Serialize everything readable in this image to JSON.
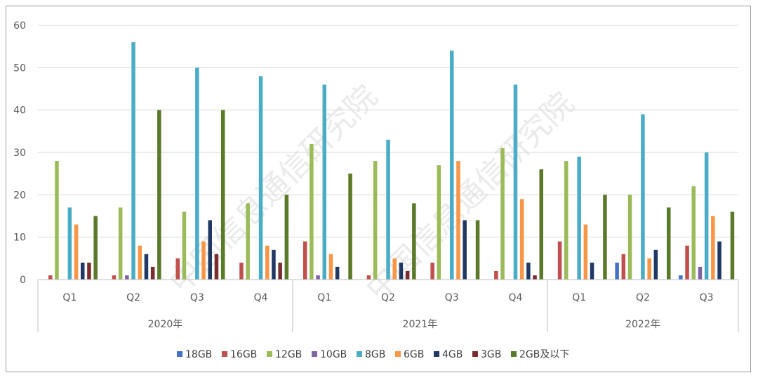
{
  "chart_data": {
    "type": "bar",
    "yticks": [
      0,
      10,
      20,
      30,
      40,
      50,
      60
    ],
    "ylim": [
      0,
      60
    ],
    "grid": true,
    "legend_position": "bottom",
    "groups": [
      {
        "label": "2020年",
        "quarters": [
          "Q1",
          "Q2",
          "Q3",
          "Q4"
        ]
      },
      {
        "label": "2021年",
        "quarters": [
          "Q1",
          "Q2",
          "Q3",
          "Q4"
        ]
      },
      {
        "label": "2022年",
        "quarters": [
          "Q1",
          "Q2",
          "Q3"
        ]
      }
    ],
    "categories": [
      "Q1",
      "Q2",
      "Q3",
      "Q4",
      "Q1",
      "Q2",
      "Q3",
      "Q4",
      "Q1",
      "Q2",
      "Q3"
    ],
    "series": [
      {
        "name": "18GB",
        "color": "#4472c4",
        "values": [
          0,
          0,
          0,
          0,
          0,
          0,
          0,
          0,
          0,
          4,
          1
        ]
      },
      {
        "name": "16GB",
        "color": "#c0504d",
        "values": [
          1,
          1,
          5,
          4,
          9,
          1,
          4,
          2,
          9,
          6,
          8
        ]
      },
      {
        "name": "12GB",
        "color": "#9bbb59",
        "values": [
          28,
          17,
          16,
          18,
          32,
          28,
          27,
          31,
          28,
          20,
          22
        ]
      },
      {
        "name": "10GB",
        "color": "#8064a2",
        "values": [
          0,
          1,
          0,
          0,
          1,
          0,
          0,
          0,
          0,
          0,
          3
        ]
      },
      {
        "name": "8GB",
        "color": "#4bacc6",
        "values": [
          17,
          56,
          50,
          48,
          46,
          33,
          54,
          46,
          29,
          39,
          30
        ]
      },
      {
        "name": "6GB",
        "color": "#f79646",
        "values": [
          13,
          8,
          9,
          8,
          6,
          5,
          28,
          19,
          13,
          5,
          15
        ]
      },
      {
        "name": "4GB",
        "color": "#1f3864",
        "values": [
          4,
          6,
          14,
          7,
          3,
          4,
          14,
          4,
          4,
          7,
          9
        ]
      },
      {
        "name": "3GB",
        "color": "#7b2c2c",
        "values": [
          4,
          3,
          6,
          4,
          0,
          2,
          0,
          1,
          0,
          0,
          0
        ]
      },
      {
        "name": "2GB及以下",
        "color": "#5a7a2a",
        "values": [
          15,
          40,
          40,
          20,
          25,
          18,
          14,
          26,
          20,
          17,
          16
        ]
      }
    ],
    "watermark": "中国信息通信研究院"
  }
}
